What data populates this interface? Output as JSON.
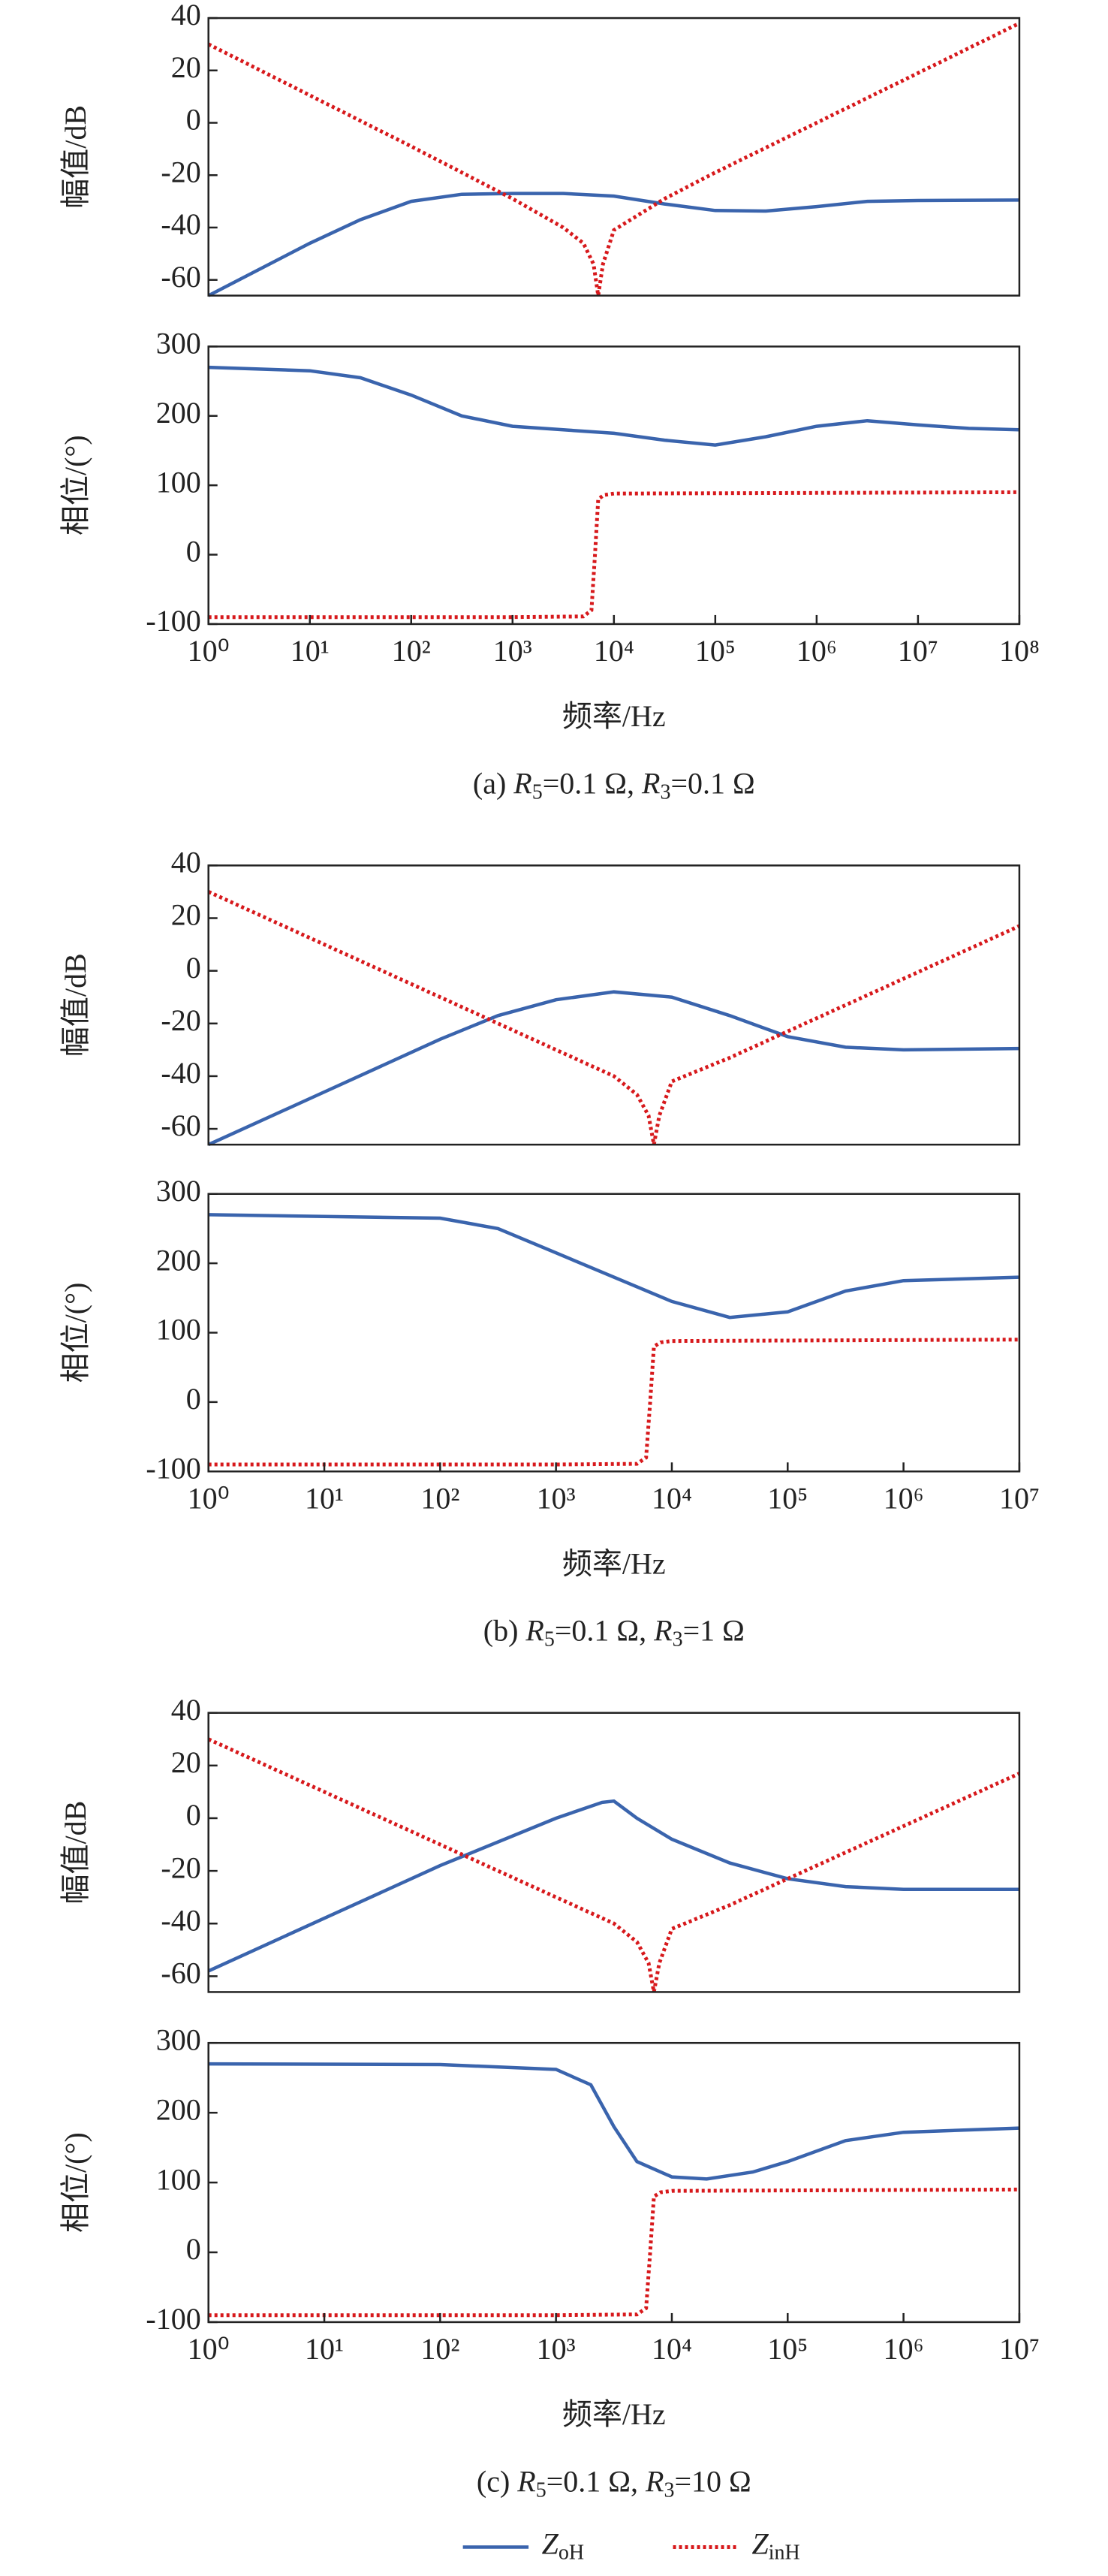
{
  "chart_data": [
    {
      "type": "line",
      "ylabel": "幅值/dB",
      "xscale": "log",
      "xlim": [
        1,
        100000000
      ],
      "ylim": [
        -66,
        40
      ],
      "yticks": [
        40,
        20,
        0,
        -20,
        -40,
        -60
      ],
      "series": [
        {
          "color": "#3a64ad",
          "style": "solid",
          "x": [
            1,
            10,
            31.6,
            100,
            316,
            1000,
            3162,
            10000,
            31623,
            100000,
            316228,
            1000000,
            3162278,
            10000000,
            100000000
          ],
          "values": [
            -66,
            -46,
            -37,
            -30,
            -27.3,
            -27,
            -27,
            -28,
            -31,
            -33.5,
            -33.7,
            -32,
            -30,
            -29.7,
            -29.5
          ]
        },
        {
          "color": "#d7191c",
          "style": "dotted",
          "x": [
            1,
            10,
            100,
            1000,
            3162,
            5000,
            6300,
            7000,
            7800,
            10000,
            31623,
            100000,
            1000000,
            10000000,
            100000000
          ],
          "values": [
            30,
            10.5,
            -9,
            -29,
            -40,
            -46,
            -54,
            -66,
            -54,
            -41,
            -29,
            -19,
            0,
            19,
            38
          ]
        }
      ]
    },
    {
      "type": "line",
      "ylabel": "相位/(°)",
      "xlabel": "频率/Hz",
      "caption": "(a) R5=0.1 Ω, R3=0.1 Ω",
      "xscale": "log",
      "xlim": [
        1,
        100000000
      ],
      "ylim": [
        -100,
        300
      ],
      "yticks": [
        300,
        200,
        100,
        0,
        -100
      ],
      "xticks": [
        {
          "value": 1,
          "label": "10⁰"
        },
        {
          "value": 10,
          "label": "10¹"
        },
        {
          "value": 100,
          "label": "10²"
        },
        {
          "value": 1000,
          "label": "10³"
        },
        {
          "value": 10000,
          "label": "10⁴"
        },
        {
          "value": 100000,
          "label": "10⁵"
        },
        {
          "value": 1000000,
          "label": "10⁶"
        },
        {
          "value": 10000000,
          "label": "10⁷"
        },
        {
          "value": 100000000,
          "label": "10⁸"
        }
      ],
      "series": [
        {
          "color": "#3a64ad",
          "style": "solid",
          "x": [
            1,
            10,
            31.6,
            100,
            316,
            1000,
            3162,
            10000,
            31623,
            100000,
            316228,
            1000000,
            3162278,
            10000000,
            31622777,
            100000000
          ],
          "values": [
            270,
            265,
            255,
            230,
            200,
            185,
            180,
            175,
            165,
            158,
            170,
            185,
            193,
            187,
            182,
            180
          ]
        },
        {
          "color": "#d7191c",
          "style": "dotted",
          "x": [
            1,
            1000,
            5000,
            6000,
            6500,
            7000,
            8000,
            10000,
            100000000
          ],
          "values": [
            -90,
            -90,
            -89,
            -80,
            0,
            80,
            86,
            88,
            90
          ]
        }
      ]
    },
    {
      "type": "line",
      "ylabel": "幅值/dB",
      "xscale": "log",
      "xlim": [
        1,
        10000000
      ],
      "ylim": [
        -66,
        40
      ],
      "yticks": [
        40,
        20,
        0,
        -20,
        -40,
        -60
      ],
      "series": [
        {
          "color": "#3a64ad",
          "style": "solid",
          "x": [
            1,
            10,
            100,
            316,
            1000,
            3162,
            10000,
            31623,
            100000,
            316228,
            1000000,
            10000000
          ],
          "values": [
            -66,
            -46,
            -26,
            -17,
            -11,
            -8,
            -10,
            -17,
            -25,
            -29,
            -30,
            -29.5
          ]
        },
        {
          "color": "#d7191c",
          "style": "dotted",
          "x": [
            1,
            10,
            100,
            1000,
            3162,
            5000,
            6300,
            7000,
            7800,
            10000,
            31623,
            100000,
            1000000,
            10000000
          ],
          "values": [
            30,
            10,
            -10,
            -30,
            -40,
            -47,
            -55,
            -66,
            -55,
            -42,
            -33,
            -23,
            -3,
            17
          ]
        }
      ]
    },
    {
      "type": "line",
      "ylabel": "相位/(°)",
      "xlabel": "频率/Hz",
      "caption": "(b) R5=0.1 Ω, R3=1 Ω",
      "xscale": "log",
      "xlim": [
        1,
        10000000
      ],
      "ylim": [
        -100,
        300
      ],
      "yticks": [
        300,
        200,
        100,
        0,
        -100
      ],
      "xticks": [
        {
          "value": 1,
          "label": "10⁰"
        },
        {
          "value": 10,
          "label": "10¹"
        },
        {
          "value": 100,
          "label": "10²"
        },
        {
          "value": 1000,
          "label": "10³"
        },
        {
          "value": 10000,
          "label": "10⁴"
        },
        {
          "value": 100000,
          "label": "10⁵"
        },
        {
          "value": 1000000,
          "label": "10⁶"
        },
        {
          "value": 10000000,
          "label": "10⁷"
        }
      ],
      "series": [
        {
          "color": "#3a64ad",
          "style": "solid",
          "x": [
            1,
            100,
            316,
            1000,
            3162,
            10000,
            31623,
            100000,
            316228,
            1000000,
            10000000
          ],
          "values": [
            270,
            265,
            250,
            215,
            180,
            145,
            122,
            130,
            160,
            175,
            180
          ]
        },
        {
          "color": "#d7191c",
          "style": "dotted",
          "x": [
            1,
            1000,
            5000,
            6000,
            6500,
            7000,
            8000,
            10000,
            10000000
          ],
          "values": [
            -90,
            -90,
            -89,
            -80,
            0,
            80,
            86,
            88,
            90
          ]
        }
      ]
    },
    {
      "type": "line",
      "ylabel": "幅值/dB",
      "xscale": "log",
      "xlim": [
        1,
        10000000
      ],
      "ylim": [
        -66,
        40
      ],
      "yticks": [
        40,
        20,
        0,
        -20,
        -40,
        -60
      ],
      "series": [
        {
          "color": "#3a64ad",
          "style": "solid",
          "x": [
            1,
            10,
            100,
            1000,
            2500,
            3162,
            5000,
            10000,
            31623,
            100000,
            316228,
            1000000,
            10000000
          ],
          "values": [
            -58,
            -38,
            -18,
            0,
            6,
            6.5,
            0,
            -8,
            -17,
            -23,
            -26,
            -27,
            -27
          ]
        },
        {
          "color": "#d7191c",
          "style": "dotted",
          "x": [
            1,
            10,
            100,
            1000,
            3162,
            5000,
            6300,
            7000,
            7800,
            10000,
            31623,
            100000,
            1000000,
            10000000
          ],
          "values": [
            30,
            10,
            -10,
            -30,
            -40,
            -47,
            -55,
            -66,
            -55,
            -42,
            -33,
            -23,
            -3,
            17
          ]
        }
      ]
    },
    {
      "type": "line",
      "ylabel": "相位/(°)",
      "xlabel": "频率/Hz",
      "caption": "(c) R5=0.1 Ω, R3=10 Ω",
      "xscale": "log",
      "xlim": [
        1,
        10000000
      ],
      "ylim": [
        -100,
        300
      ],
      "yticks": [
        300,
        200,
        100,
        0,
        -100
      ],
      "xticks": [
        {
          "value": 1,
          "label": "10⁰"
        },
        {
          "value": 10,
          "label": "10¹"
        },
        {
          "value": 100,
          "label": "10²"
        },
        {
          "value": 1000,
          "label": "10³"
        },
        {
          "value": 10000,
          "label": "10⁴"
        },
        {
          "value": 100000,
          "label": "10⁵"
        },
        {
          "value": 1000000,
          "label": "10⁶"
        },
        {
          "value": 10000000,
          "label": "10⁷"
        }
      ],
      "series": [
        {
          "name": "ZoH",
          "color": "#3a64ad",
          "style": "solid",
          "x": [
            1,
            100,
            1000,
            2000,
            3162,
            5000,
            10000,
            20000,
            50000,
            100000,
            316228,
            1000000,
            10000000
          ],
          "values": [
            270,
            269,
            262,
            240,
            180,
            130,
            108,
            105,
            115,
            130,
            160,
            172,
            178
          ]
        },
        {
          "name": "ZinH",
          "color": "#d7191c",
          "style": "dotted",
          "x": [
            1,
            1000,
            5000,
            6000,
            6500,
            7000,
            8000,
            10000,
            10000000
          ],
          "values": [
            -90,
            -90,
            -89,
            -80,
            0,
            80,
            86,
            88,
            90
          ]
        }
      ]
    }
  ]
}
